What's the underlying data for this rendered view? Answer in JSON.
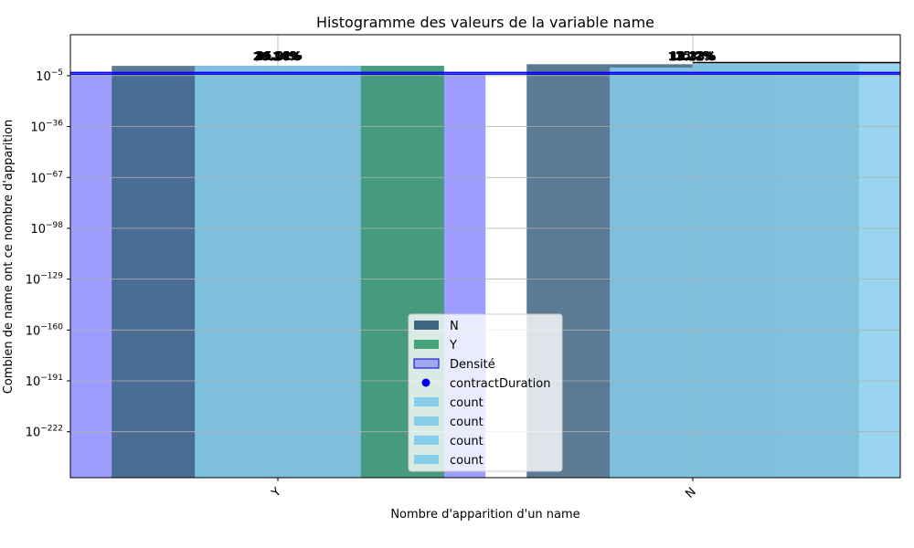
{
  "chart_data": {
    "type": "bar",
    "title": "Histogramme des valeurs de la variable name",
    "xlabel": "Nombre d'apparition d'un name",
    "ylabel": "Combien de name ont ce nombre d'apparition",
    "yscale": "log",
    "ylim_exponents": [
      -250,
      20
    ],
    "categories": [
      "Y",
      "N"
    ],
    "y_ticks": [
      {
        "exp": -5,
        "label": "10",
        "sup": "−5"
      },
      {
        "exp": -36,
        "label": "10",
        "sup": "−36"
      },
      {
        "exp": -67,
        "label": "10",
        "sup": "−67"
      },
      {
        "exp": -98,
        "label": "10",
        "sup": "−98"
      },
      {
        "exp": -129,
        "label": "10",
        "sup": "−129"
      },
      {
        "exp": -160,
        "label": "10",
        "sup": "−160"
      },
      {
        "exp": -191,
        "label": "10",
        "sup": "−191"
      },
      {
        "exp": -222,
        "label": "10",
        "sup": "−222"
      }
    ],
    "grid": true,
    "legend_position": "lower-center",
    "legend": [
      {
        "label": "N",
        "kind": "patch",
        "color": "#3d6480"
      },
      {
        "label": "Y",
        "kind": "patch",
        "color": "#45a27a"
      },
      {
        "label": "Densité",
        "kind": "patch-outline",
        "color": "#a0a6f0",
        "edge": "#0000cc"
      },
      {
        "label": "contractDuration",
        "kind": "dot",
        "color": "#0000ee"
      },
      {
        "label": "count",
        "kind": "patch",
        "color": "#87ceeb"
      },
      {
        "label": "count",
        "kind": "patch",
        "color": "#87ceeb"
      },
      {
        "label": "count",
        "kind": "patch",
        "color": "#87ceeb"
      },
      {
        "label": "count",
        "kind": "patch",
        "color": "#87ceeb"
      }
    ],
    "bars": [
      {
        "name": "Densité",
        "category": "Y",
        "slot": [
          -1.0,
          1.0
        ],
        "top_exp": -4,
        "color": "#8c8cff"
      },
      {
        "name": "Densité",
        "category": "N",
        "slot": [
          -0.4,
          0.4
        ],
        "top_exp": -4,
        "color": "#8c8cff"
      },
      {
        "name": "contractDuration",
        "category": "Y",
        "slot": [
          -0.8,
          0.8
        ],
        "top_exp": 1,
        "color": "#3d6480"
      },
      {
        "name": "contractDuration",
        "category": "N",
        "slot": [
          -0.8,
          0.8
        ],
        "top_exp": 2,
        "color": "#3d6480"
      },
      {
        "name": "Y",
        "category": "Y",
        "slot": [
          0.4,
          0.8
        ],
        "top_exp": 1,
        "color": "#45a27a"
      },
      {
        "name": "count",
        "category": "Y",
        "slot": [
          -0.4,
          0.4
        ],
        "top_exp": 1,
        "color": "#87ceeb"
      },
      {
        "name": "count",
        "category": "N",
        "slot": [
          -0.4,
          0.0
        ],
        "top_exp": 0,
        "color": "#87ceeb"
      },
      {
        "name": "count",
        "category": "N",
        "slot": [
          0.0,
          1.3
        ],
        "top_exp": 3,
        "color": "#87ceeb"
      }
    ],
    "overlay_lines_exp": [
      -3,
      -4
    ],
    "line_color": "#0000ee",
    "percent_labels": [
      {
        "category": "Y",
        "texts": [
          "34.18%",
          "25.11%",
          "36.24%",
          "35.21%",
          "26.14%"
        ]
      },
      {
        "category": "N",
        "texts": [
          "10.32%",
          "11.33%",
          "13.12%",
          "15.2%",
          "12.27%"
        ]
      }
    ]
  }
}
